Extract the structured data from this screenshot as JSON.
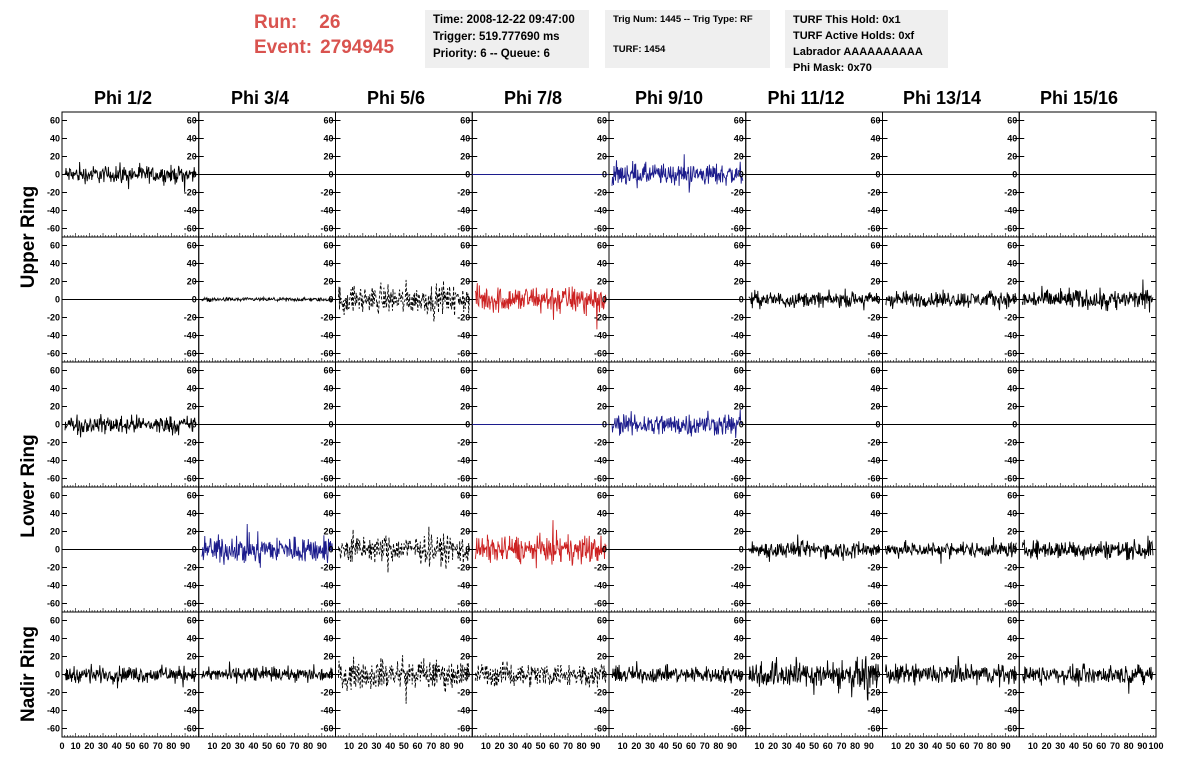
{
  "header": {
    "run_label": "Run:",
    "run_value": "26",
    "event_label": "Event:",
    "event_value": "2794945"
  },
  "info_box_1": {
    "time": "Time: 2008-12-22 09:47:00",
    "trigger": "Trigger: 519.777690 ms",
    "priority": "Priority: 6 -- Queue: 6"
  },
  "info_box_2": {
    "trig": "Trig Num: 1445 -- Trig Type: RF",
    "turf": "TURF: 1454"
  },
  "info_box_3": {
    "hold": "TURF This Hold: 0x1",
    "active": "TURF Active Holds: 0xf",
    "labrador": "Labrador AAAAAAAAAA",
    "phimask": "Phi Mask: 0x70"
  },
  "column_headers": [
    "Phi 1/2",
    "Phi 3/4",
    "Phi 5/6",
    "Phi 7/8",
    "Phi 9/10",
    "Phi 11/12",
    "Phi 13/14",
    "Phi 15/16"
  ],
  "ring_labels": {
    "upper": "Upper Ring",
    "lower": "Lower Ring",
    "nadir": "Nadir Ring"
  },
  "chart_data": {
    "type": "line",
    "ylim": [
      -65,
      65
    ],
    "xlim": [
      0,
      100
    ],
    "y_ticks": [
      -60,
      -40,
      -20,
      0,
      20,
      40,
      60
    ],
    "x_tick_labels": [
      "0",
      "10",
      "20",
      "30",
      "40",
      "50",
      "60",
      "70",
      "80",
      "90",
      "100"
    ],
    "colors": {
      "black": "#000000",
      "blue": "#1c1c8c",
      "red": "#cc2222"
    },
    "rows": [
      {
        "ring": "Upper",
        "panels": [
          {
            "color": "black",
            "style": "noise",
            "amplitude": 14
          },
          {
            "color": "black",
            "style": "flat",
            "amplitude": 0
          },
          {
            "color": "black",
            "style": "flat",
            "amplitude": 0
          },
          {
            "color": "blue",
            "style": "flat",
            "amplitude": 0
          },
          {
            "color": "blue",
            "style": "noise",
            "amplitude": 18
          },
          {
            "color": "black",
            "style": "flat",
            "amplitude": 0
          },
          {
            "color": "black",
            "style": "flat",
            "amplitude": 0
          },
          {
            "color": "black",
            "style": "flat",
            "amplitude": 0
          }
        ]
      },
      {
        "ring": "Upper",
        "panels": [
          {
            "color": "black",
            "style": "flat",
            "amplitude": 0
          },
          {
            "color": "black",
            "style": "noise",
            "amplitude": 3
          },
          {
            "color": "black",
            "style": "dashed",
            "amplitude": 22
          },
          {
            "color": "red",
            "style": "noise",
            "amplitude": 22
          },
          {
            "color": "black",
            "style": "flat",
            "amplitude": 0
          },
          {
            "color": "black",
            "style": "noise",
            "amplitude": 12
          },
          {
            "color": "black",
            "style": "noise",
            "amplitude": 13
          },
          {
            "color": "black",
            "style": "noise",
            "amplitude": 16
          }
        ]
      },
      {
        "ring": "Lower",
        "panels": [
          {
            "color": "black",
            "style": "noise",
            "amplitude": 14
          },
          {
            "color": "black",
            "style": "flat",
            "amplitude": 0
          },
          {
            "color": "black",
            "style": "flat",
            "amplitude": 0
          },
          {
            "color": "blue",
            "style": "flat",
            "amplitude": 0
          },
          {
            "color": "blue",
            "style": "noise",
            "amplitude": 18
          },
          {
            "color": "black",
            "style": "flat",
            "amplitude": 0
          },
          {
            "color": "black",
            "style": "flat",
            "amplitude": 0
          },
          {
            "color": "black",
            "style": "flat",
            "amplitude": 0
          }
        ]
      },
      {
        "ring": "Lower",
        "panels": [
          {
            "color": "black",
            "style": "flat",
            "amplitude": 0
          },
          {
            "color": "blue",
            "style": "noise",
            "amplitude": 22
          },
          {
            "color": "black",
            "style": "dashed",
            "amplitude": 22
          },
          {
            "color": "red",
            "style": "noise",
            "amplitude": 22
          },
          {
            "color": "black",
            "style": "flat",
            "amplitude": 0
          },
          {
            "color": "black",
            "style": "noise",
            "amplitude": 13
          },
          {
            "color": "black",
            "style": "noise",
            "amplitude": 12
          },
          {
            "color": "black",
            "style": "noise",
            "amplitude": 15
          }
        ]
      },
      {
        "ring": "Nadir",
        "panels": [
          {
            "color": "black",
            "style": "noise",
            "amplitude": 13
          },
          {
            "color": "black",
            "style": "noise",
            "amplitude": 11
          },
          {
            "color": "black",
            "style": "dashed",
            "amplitude": 24
          },
          {
            "color": "black",
            "style": "dashed",
            "amplitude": 19
          },
          {
            "color": "black",
            "style": "noise",
            "amplitude": 13
          },
          {
            "color": "black",
            "style": "noise",
            "amplitude": 22
          },
          {
            "color": "black",
            "style": "noise",
            "amplitude": 16
          },
          {
            "color": "black",
            "style": "noise",
            "amplitude": 14
          }
        ]
      }
    ]
  }
}
